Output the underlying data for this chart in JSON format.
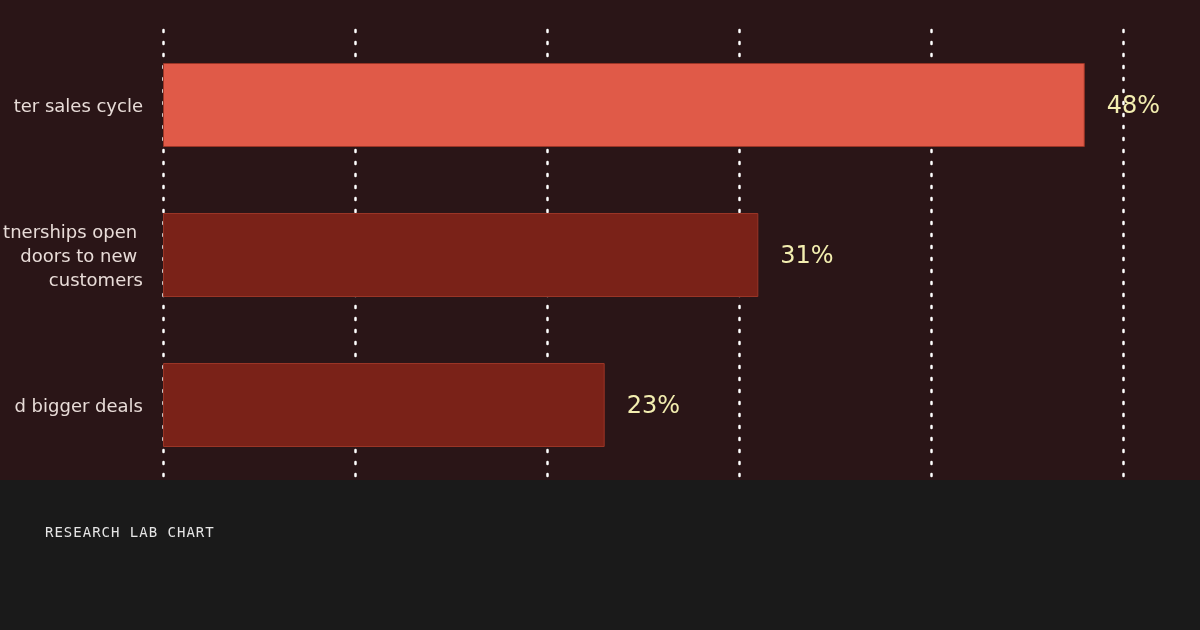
{
  "chart_data": {
    "type": "bar",
    "orientation": "horizontal",
    "title": "RESEARCH LAB CHART",
    "categories": [
      "ter sales cycle",
      "tnerships open doors to new customers",
      "d bigger deals"
    ],
    "values": [
      48,
      31,
      23
    ],
    "value_labels": [
      "48%",
      "31%",
      "23%"
    ],
    "colors": [
      "#e05a48",
      "#7a2218",
      "#7a2218"
    ],
    "xlim": [
      0,
      54
    ],
    "xticks": [
      {
        "value": 0,
        "label": null
      },
      {
        "value": 10,
        "label": null
      },
      {
        "value": 20,
        "label": null
      },
      {
        "value": 30,
        "label": null
      },
      {
        "value": 40,
        "label": null
      },
      {
        "value": 50,
        "label": null
      }
    ],
    "grid": "x"
  }
}
